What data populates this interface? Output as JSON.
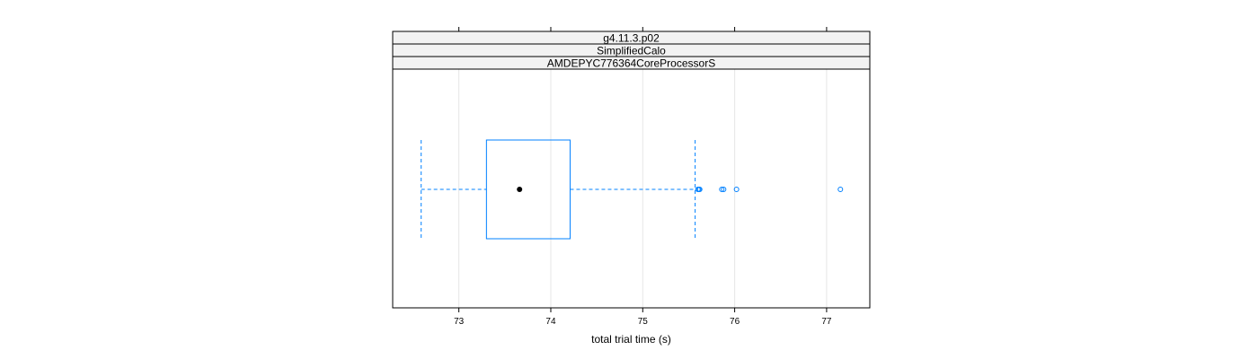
{
  "chart_data": {
    "type": "box",
    "strips": [
      "g4.11.3.p02",
      "SimplifiedCalo",
      "AMDEPYC776364CoreProcessorS"
    ],
    "xlabel": "total trial time (s)",
    "ylabel": "",
    "xlim": [
      72.28,
      77.47
    ],
    "xticks": [
      73,
      74,
      75,
      76,
      77
    ],
    "grid": true,
    "box": {
      "whisker_low": 72.59,
      "q1": 73.3,
      "median": 73.66,
      "q3": 74.21,
      "whisker_high": 75.57,
      "outliers": [
        75.6,
        75.61,
        75.62,
        75.86,
        75.88,
        76.02,
        77.15
      ]
    },
    "colors": {
      "box": "#0080ff",
      "whisker": "#0080ff",
      "median_dot": "#000000",
      "grid": "#e6e6e6",
      "strip_bg": "#f2f2f2"
    }
  }
}
